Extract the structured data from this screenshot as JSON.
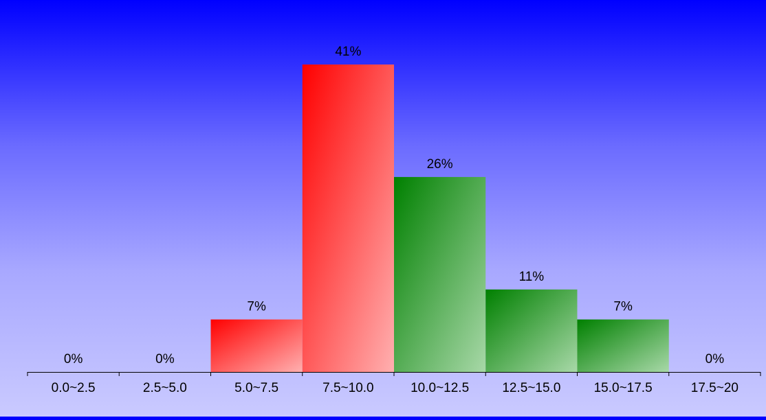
{
  "chart_data": {
    "type": "bar",
    "title": "",
    "xlabel": "",
    "ylabel": "",
    "categories": [
      "0.0~2.5",
      "2.5~5.0",
      "5.0~7.5",
      "7.5~10.0",
      "10.0~12.5",
      "12.5~15.0",
      "15.0~17.5",
      "17.5~20"
    ],
    "values": [
      0,
      0,
      7,
      41,
      26,
      11,
      7,
      0
    ],
    "value_labels": [
      "0%",
      "0%",
      "7%",
      "41%",
      "26%",
      "11%",
      "7%",
      "0%"
    ],
    "bar_colors": [
      "#ff0000",
      "#ff0000",
      "#ff0000",
      "#ff0000",
      "#008000",
      "#008000",
      "#008000",
      "#008000"
    ],
    "ylim": [
      0,
      41
    ],
    "grid": false,
    "legend": "none"
  },
  "colors": {
    "background_top": "#0000ff",
    "background_bottom": "#cacaff",
    "red_bar": "#ff0000",
    "green_bar": "#008000",
    "axis": "#000000"
  }
}
